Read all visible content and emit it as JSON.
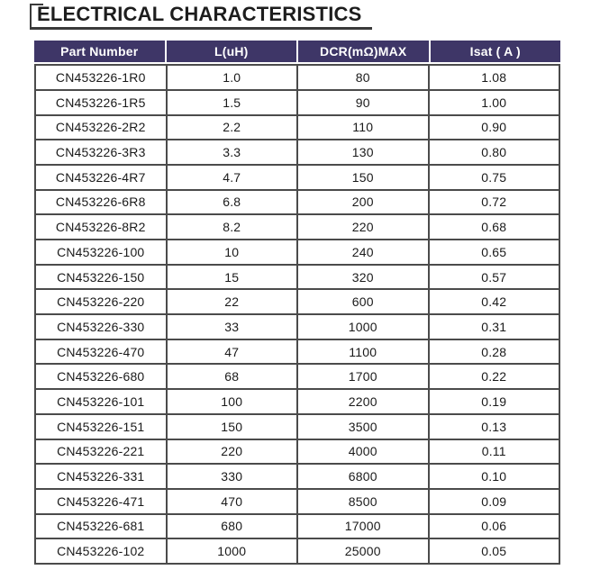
{
  "title": "ELECTRICAL CHARACTERISTICS",
  "colors": {
    "header_bg": "#3e3667",
    "header_text": "#ffffff",
    "body_border": "#4b4b4b",
    "body_text": "#1a1a1a",
    "title_text": "#1d1d1d"
  },
  "table": {
    "headers": [
      "Part Number",
      "L(uH)",
      "DCR(mΩ)MAX",
      "Isat ( A )"
    ],
    "rows": [
      [
        "CN453226-1R0",
        "1.0",
        "80",
        "1.08"
      ],
      [
        "CN453226-1R5",
        "1.5",
        "90",
        "1.00"
      ],
      [
        "CN453226-2R2",
        "2.2",
        "110",
        "0.90"
      ],
      [
        "CN453226-3R3",
        "3.3",
        "130",
        "0.80"
      ],
      [
        "CN453226-4R7",
        "4.7",
        "150",
        "0.75"
      ],
      [
        "CN453226-6R8",
        "6.8",
        "200",
        "0.72"
      ],
      [
        "CN453226-8R2",
        "8.2",
        "220",
        "0.68"
      ],
      [
        "CN453226-100",
        "10",
        "240",
        "0.65"
      ],
      [
        "CN453226-150",
        "15",
        "320",
        "0.57"
      ],
      [
        "CN453226-220",
        "22",
        "600",
        "0.42"
      ],
      [
        "CN453226-330",
        "33",
        "1000",
        "0.31"
      ],
      [
        "CN453226-470",
        "47",
        "1100",
        "0.28"
      ],
      [
        "CN453226-680",
        "68",
        "1700",
        "0.22"
      ],
      [
        "CN453226-101",
        "100",
        "2200",
        "0.19"
      ],
      [
        "CN453226-151",
        "150",
        "3500",
        "0.13"
      ],
      [
        "CN453226-221",
        "220",
        "4000",
        "0.11"
      ],
      [
        "CN453226-331",
        "330",
        "6800",
        "0.10"
      ],
      [
        "CN453226-471",
        "470",
        "8500",
        "0.09"
      ],
      [
        "CN453226-681",
        "680",
        "17000",
        "0.06"
      ],
      [
        "CN453226-102",
        "1000",
        "25000",
        "0.05"
      ]
    ],
    "cell_names": [
      "cell-part-number",
      "cell-inductance",
      "cell-dcr-max",
      "cell-isat"
    ]
  }
}
